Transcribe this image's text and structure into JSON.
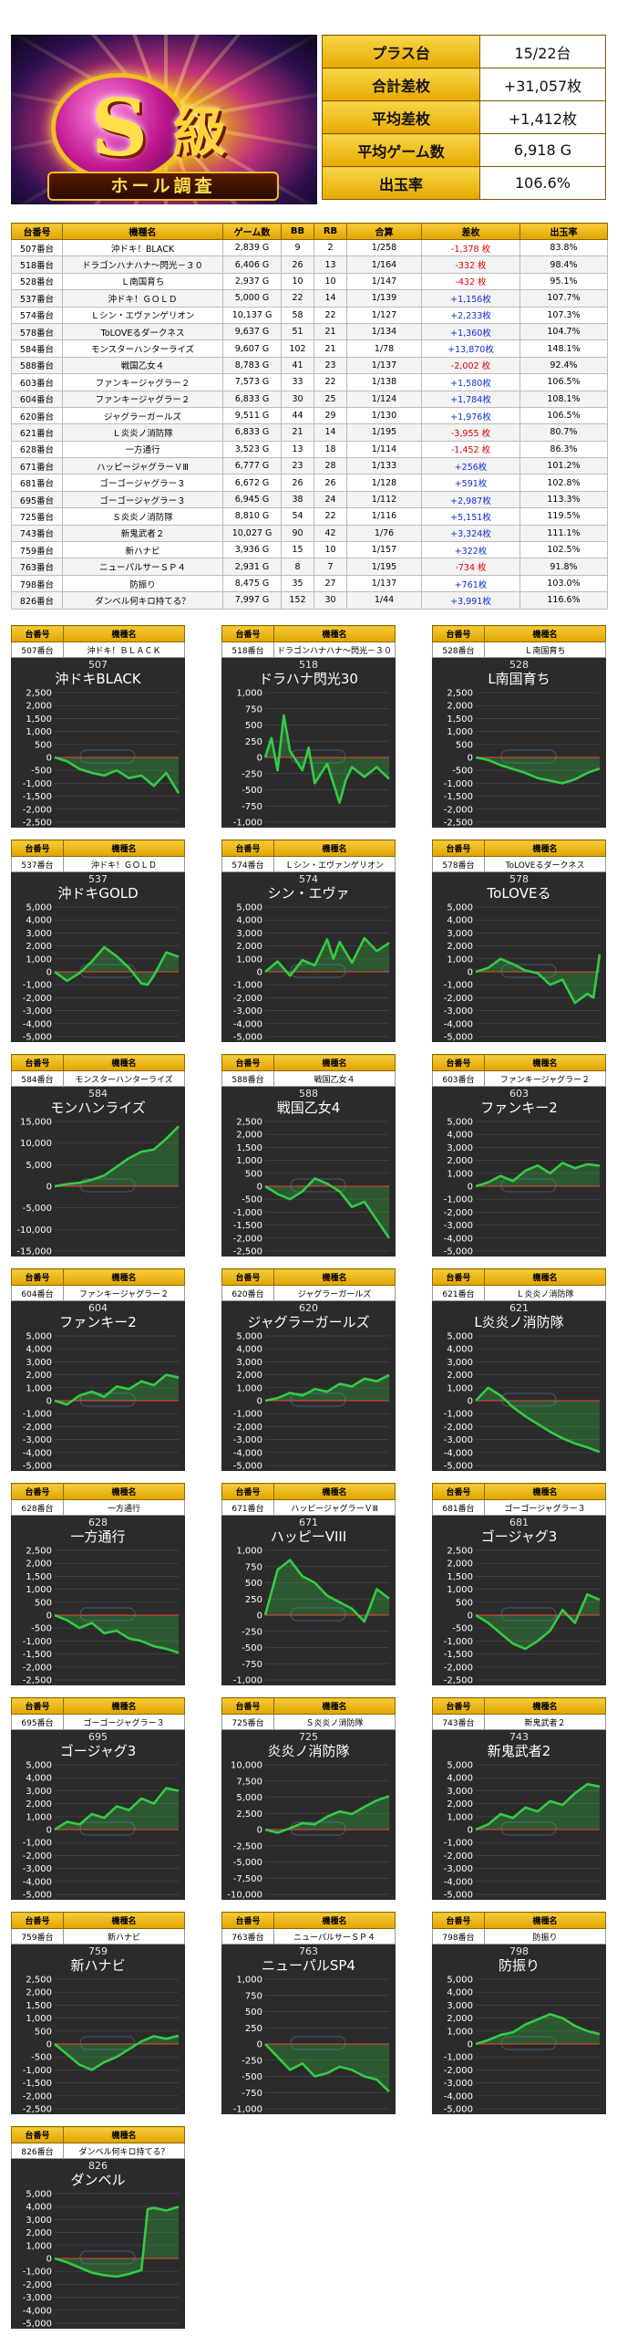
{
  "banner": {
    "s": "S",
    "kyu": "級",
    "subtitle": "ホール調査"
  },
  "summary": [
    {
      "label": "プラス台",
      "value": "15/22台"
    },
    {
      "label": "合計差枚",
      "value": "+31,057枚"
    },
    {
      "label": "平均差枚",
      "value": "+1,412枚"
    },
    {
      "label": "平均ゲーム数",
      "value": "6,918 G"
    },
    {
      "label": "出玉率",
      "value": "106.6%"
    }
  ],
  "table": {
    "headers": [
      "台番号",
      "機種名",
      "ゲーム数",
      "BB",
      "RB",
      "合算",
      "差枚",
      "出玉率"
    ],
    "rows": [
      [
        "507番台",
        "沖ドキ！BLACK",
        "2,839 G",
        "9",
        "2",
        "1/258",
        "-1,378 枚",
        "83.8%"
      ],
      [
        "518番台",
        "ドラゴンハナハナ～閃光－３０",
        "6,406 G",
        "26",
        "13",
        "1/164",
        "-332 枚",
        "98.4%"
      ],
      [
        "528番台",
        "Ｌ南国育ち",
        "2,937 G",
        "10",
        "10",
        "1/147",
        "-432 枚",
        "95.1%"
      ],
      [
        "537番台",
        "沖ドキ！ＧＯＬＤ",
        "5,000 G",
        "22",
        "14",
        "1/139",
        "+1,156枚",
        "107.7%"
      ],
      [
        "574番台",
        "Ｌシン・エヴァンゲリオン",
        "10,137 G",
        "58",
        "22",
        "1/127",
        "+2,233枚",
        "107.3%"
      ],
      [
        "578番台",
        "ToLOVEるダークネス",
        "9,637 G",
        "51",
        "21",
        "1/134",
        "+1,360枚",
        "104.7%"
      ],
      [
        "584番台",
        "モンスターハンターライズ",
        "9,607 G",
        "102",
        "21",
        "1/78",
        "+13,870枚",
        "148.1%"
      ],
      [
        "588番台",
        "戦国乙女４",
        "8,783 G",
        "41",
        "23",
        "1/137",
        "-2,002 枚",
        "92.4%"
      ],
      [
        "603番台",
        "ファンキージャグラー２",
        "7,573 G",
        "33",
        "22",
        "1/138",
        "+1,580枚",
        "106.5%"
      ],
      [
        "604番台",
        "ファンキージャグラー２",
        "6,833 G",
        "30",
        "25",
        "1/124",
        "+1,784枚",
        "108.1%"
      ],
      [
        "620番台",
        "ジャグラーガールズ",
        "9,511 G",
        "44",
        "29",
        "1/130",
        "+1,976枚",
        "106.5%"
      ],
      [
        "621番台",
        "Ｌ炎炎ノ消防隊",
        "6,833 G",
        "21",
        "14",
        "1/195",
        "-3,955 枚",
        "80.7%"
      ],
      [
        "628番台",
        "一方通行",
        "3,523 G",
        "13",
        "18",
        "1/114",
        "-1,452 枚",
        "86.3%"
      ],
      [
        "671番台",
        "ハッピージャグラーＶⅢ",
        "6,777 G",
        "23",
        "28",
        "1/133",
        "+256枚",
        "101.2%"
      ],
      [
        "681番台",
        "ゴーゴージャグラー３",
        "6,672 G",
        "26",
        "26",
        "1/128",
        "+591枚",
        "102.8%"
      ],
      [
        "695番台",
        "ゴーゴージャグラー３",
        "6,945 G",
        "38",
        "24",
        "1/112",
        "+2,987枚",
        "113.3%"
      ],
      [
        "725番台",
        "Ｓ炎炎ノ消防隊",
        "8,810 G",
        "54",
        "22",
        "1/116",
        "+5,151枚",
        "119.5%"
      ],
      [
        "743番台",
        "新鬼武者２",
        "10,027 G",
        "90",
        "42",
        "1/76",
        "+3,324枚",
        "111.1%"
      ],
      [
        "759番台",
        "新ハナビ",
        "3,936 G",
        "15",
        "10",
        "1/157",
        "+322枚",
        "102.5%"
      ],
      [
        "763番台",
        "ニューパルサーＳＰ４",
        "2,931 G",
        "8",
        "7",
        "1/195",
        "-734 枚",
        "91.8%"
      ],
      [
        "798番台",
        "防振り",
        "8,475 G",
        "35",
        "27",
        "1/137",
        "+761枚",
        "103.0%"
      ],
      [
        "826番台",
        "ダンベル何キロ持てる？",
        "7,997 G",
        "152",
        "30",
        "1/44",
        "+3,991枚",
        "116.6%"
      ]
    ]
  },
  "panel_headers": [
    "台番号",
    "機種名"
  ],
  "chart_data": [
    {
      "type": "line",
      "unit": "507",
      "title": "沖ドキBLACK",
      "machine": "沖ドキ！ＢＬＡＣＫ",
      "ylim": [
        -2500,
        2500
      ],
      "yticks": [
        2500,
        2000,
        1500,
        1000,
        500,
        0,
        -500,
        -1000,
        -1500,
        -2000,
        -2500
      ],
      "x": [
        0,
        0.1,
        0.2,
        0.3,
        0.4,
        0.5,
        0.6,
        0.7,
        0.8,
        0.9,
        1.0
      ],
      "values": [
        0,
        -150,
        -450,
        -600,
        -700,
        -500,
        -800,
        -700,
        -1100,
        -600,
        -1378
      ],
      "color": "#33cc44"
    },
    {
      "type": "line",
      "unit": "518",
      "title": "ドラハナ閃光30",
      "machine": "ドラゴンハナハナ～閃光－３０",
      "ylim": [
        -1000,
        1000
      ],
      "yticks": [
        1000,
        750,
        500,
        250,
        0,
        -250,
        -500,
        -750,
        -1000
      ],
      "x": [
        0,
        0.05,
        0.1,
        0.15,
        0.2,
        0.3,
        0.35,
        0.4,
        0.5,
        0.6,
        0.65,
        0.7,
        0.8,
        0.9,
        1.0
      ],
      "values": [
        0,
        300,
        -200,
        650,
        100,
        -200,
        150,
        -400,
        -100,
        -700,
        -350,
        -150,
        -300,
        -150,
        -332
      ],
      "color": "#33cc44"
    },
    {
      "type": "line",
      "unit": "528",
      "title": "L南国育ち",
      "machine": "Ｌ南国育ち",
      "ylim": [
        -2500,
        2500
      ],
      "yticks": [
        2500,
        2000,
        1500,
        1000,
        500,
        0,
        -500,
        -1000,
        -1500,
        -2000,
        -2500
      ],
      "x": [
        0,
        0.1,
        0.2,
        0.3,
        0.4,
        0.5,
        0.6,
        0.7,
        0.8,
        0.9,
        1.0
      ],
      "values": [
        0,
        -100,
        -300,
        -450,
        -600,
        -800,
        -900,
        -1000,
        -850,
        -600,
        -432
      ],
      "color": "#33cc44"
    },
    {
      "type": "line",
      "unit": "537",
      "title": "沖ドキGOLD",
      "machine": "沖ドキ！ＧＯＬＤ",
      "ylim": [
        -5000,
        5000
      ],
      "yticks": [
        5000,
        4000,
        3000,
        2000,
        1000,
        0,
        -1000,
        -2000,
        -3000,
        -4000,
        -5000
      ],
      "x": [
        0,
        0.1,
        0.2,
        0.3,
        0.4,
        0.5,
        0.6,
        0.7,
        0.75,
        0.8,
        0.9,
        1.0
      ],
      "values": [
        0,
        -700,
        -100,
        800,
        1900,
        1200,
        300,
        -900,
        -1000,
        -300,
        1500,
        1156
      ],
      "color": "#33cc44"
    },
    {
      "type": "line",
      "unit": "574",
      "title": "シン・エヴァ",
      "machine": "Ｌシン・エヴァンゲリオン",
      "ylim": [
        -5000,
        5000
      ],
      "yticks": [
        5000,
        4000,
        3000,
        2000,
        1000,
        0,
        -1000,
        -2000,
        -3000,
        -4000,
        -5000
      ],
      "x": [
        0,
        0.1,
        0.2,
        0.3,
        0.4,
        0.5,
        0.55,
        0.6,
        0.7,
        0.8,
        0.9,
        1.0
      ],
      "values": [
        0,
        800,
        -300,
        900,
        500,
        2500,
        1000,
        2300,
        700,
        2600,
        1600,
        2233
      ],
      "color": "#33cc44"
    },
    {
      "type": "line",
      "unit": "578",
      "title": "ToLOVEる",
      "machine": "ToLOVEるダークネス",
      "ylim": [
        -5000,
        5000
      ],
      "yticks": [
        5000,
        4000,
        3000,
        2000,
        1000,
        0,
        -1000,
        -2000,
        -3000,
        -4000,
        -5000
      ],
      "x": [
        0,
        0.1,
        0.2,
        0.3,
        0.4,
        0.5,
        0.6,
        0.7,
        0.8,
        0.9,
        0.95,
        1.0
      ],
      "values": [
        0,
        300,
        1000,
        600,
        100,
        -100,
        -1000,
        -600,
        -2400,
        -1700,
        -2000,
        1360
      ],
      "color": "#33cc44"
    },
    {
      "type": "line",
      "unit": "584",
      "title": "モンハンライズ",
      "machine": "モンスターハンターライズ",
      "ylim": [
        -15000,
        15000
      ],
      "yticks": [
        15000,
        10000,
        5000,
        0,
        -5000,
        -10000,
        -15000
      ],
      "x": [
        0,
        0.1,
        0.2,
        0.3,
        0.4,
        0.5,
        0.6,
        0.7,
        0.8,
        0.9,
        1.0
      ],
      "values": [
        0,
        500,
        800,
        1500,
        2500,
        4500,
        6500,
        8000,
        8500,
        11000,
        13870
      ],
      "color": "#33cc44"
    },
    {
      "type": "line",
      "unit": "588",
      "title": "戦国乙女4",
      "machine": "戦国乙女４",
      "ylim": [
        -2500,
        2500
      ],
      "yticks": [
        2500,
        2000,
        1500,
        1000,
        500,
        0,
        -500,
        -1000,
        -1500,
        -2000,
        -2500
      ],
      "x": [
        0,
        0.1,
        0.2,
        0.3,
        0.4,
        0.5,
        0.6,
        0.7,
        0.8,
        0.9,
        1.0
      ],
      "values": [
        0,
        -300,
        -500,
        -200,
        300,
        100,
        -200,
        -800,
        -600,
        -1300,
        -2002
      ],
      "color": "#33cc44"
    },
    {
      "type": "line",
      "unit": "603",
      "title": "ファンキー2",
      "machine": "ファンキージャグラー２",
      "ylim": [
        -5000,
        5000
      ],
      "yticks": [
        5000,
        4000,
        3000,
        2000,
        1000,
        0,
        -1000,
        -2000,
        -3000,
        -4000,
        -5000
      ],
      "x": [
        0,
        0.1,
        0.2,
        0.3,
        0.4,
        0.5,
        0.6,
        0.7,
        0.8,
        0.9,
        1.0
      ],
      "values": [
        0,
        300,
        800,
        400,
        1200,
        1600,
        1000,
        1800,
        1400,
        1700,
        1580
      ],
      "color": "#33cc44"
    },
    {
      "type": "line",
      "unit": "604",
      "title": "ファンキー2",
      "machine": "ファンキージャグラー２",
      "ylim": [
        -5000,
        5000
      ],
      "yticks": [
        5000,
        4000,
        3000,
        2000,
        1000,
        0,
        -1000,
        -2000,
        -3000,
        -4000,
        -5000
      ],
      "x": [
        0,
        0.1,
        0.2,
        0.3,
        0.4,
        0.5,
        0.6,
        0.7,
        0.8,
        0.9,
        1.0
      ],
      "values": [
        0,
        -300,
        400,
        700,
        300,
        1100,
        900,
        1500,
        1200,
        2000,
        1784
      ],
      "color": "#33cc44"
    },
    {
      "type": "line",
      "unit": "620",
      "title": "ジャグラーガールズ",
      "machine": "ジャグラーガールズ",
      "ylim": [
        -5000,
        5000
      ],
      "yticks": [
        5000,
        4000,
        3000,
        2000,
        1000,
        0,
        -1000,
        -2000,
        -3000,
        -4000,
        -5000
      ],
      "x": [
        0,
        0.1,
        0.2,
        0.3,
        0.4,
        0.5,
        0.6,
        0.7,
        0.8,
        0.9,
        1.0
      ],
      "values": [
        0,
        200,
        600,
        400,
        900,
        700,
        1300,
        1100,
        1700,
        1500,
        1976
      ],
      "color": "#33cc44"
    },
    {
      "type": "line",
      "unit": "621",
      "title": "L炎炎ノ消防隊",
      "machine": "Ｌ炎炎ノ消防隊",
      "ylim": [
        -5000,
        5000
      ],
      "yticks": [
        5000,
        4000,
        3000,
        2000,
        1000,
        0,
        -1000,
        -2000,
        -3000,
        -4000,
        -5000
      ],
      "x": [
        0,
        0.1,
        0.2,
        0.3,
        0.4,
        0.5,
        0.6,
        0.7,
        0.8,
        0.9,
        1.0
      ],
      "values": [
        0,
        1000,
        400,
        -500,
        -1200,
        -1800,
        -2400,
        -2900,
        -3300,
        -3600,
        -3955
      ],
      "color": "#33cc44"
    },
    {
      "type": "line",
      "unit": "628",
      "title": "一方通行",
      "machine": "一方通行",
      "ylim": [
        -2500,
        2500
      ],
      "yticks": [
        2500,
        2000,
        1500,
        1000,
        500,
        0,
        -500,
        -1000,
        -1500,
        -2000,
        -2500
      ],
      "x": [
        0,
        0.1,
        0.2,
        0.3,
        0.4,
        0.5,
        0.6,
        0.7,
        0.8,
        0.9,
        1.0
      ],
      "values": [
        0,
        -200,
        -500,
        -300,
        -700,
        -600,
        -900,
        -1000,
        -1200,
        -1300,
        -1452
      ],
      "color": "#33cc44"
    },
    {
      "type": "line",
      "unit": "671",
      "title": "ハッピーVIII",
      "machine": "ハッピージャグラーＶⅢ",
      "ylim": [
        -1000,
        1000
      ],
      "yticks": [
        1000,
        750,
        500,
        250,
        0,
        -250,
        -500,
        -750,
        -1000
      ],
      "x": [
        0,
        0.1,
        0.2,
        0.3,
        0.4,
        0.5,
        0.6,
        0.7,
        0.8,
        0.9,
        1.0
      ],
      "values": [
        0,
        700,
        850,
        600,
        500,
        300,
        200,
        100,
        -100,
        400,
        256
      ],
      "color": "#33cc44"
    },
    {
      "type": "line",
      "unit": "681",
      "title": "ゴージャグ3",
      "machine": "ゴーゴージャグラー３",
      "ylim": [
        -2500,
        2500
      ],
      "yticks": [
        2500,
        2000,
        1500,
        1000,
        500,
        0,
        -500,
        -1000,
        -1500,
        -2000,
        -2500
      ],
      "x": [
        0,
        0.1,
        0.2,
        0.3,
        0.4,
        0.5,
        0.6,
        0.7,
        0.8,
        0.9,
        1.0
      ],
      "values": [
        0,
        -300,
        -700,
        -1100,
        -1300,
        -1000,
        -600,
        200,
        -300,
        800,
        591
      ],
      "color": "#33cc44"
    },
    {
      "type": "line",
      "unit": "695",
      "title": "ゴージャグ3",
      "machine": "ゴーゴージャグラー３",
      "ylim": [
        -5000,
        5000
      ],
      "yticks": [
        5000,
        4000,
        3000,
        2000,
        1000,
        0,
        -1000,
        -2000,
        -3000,
        -4000,
        -5000
      ],
      "x": [
        0,
        0.1,
        0.2,
        0.3,
        0.4,
        0.5,
        0.6,
        0.7,
        0.8,
        0.9,
        1.0
      ],
      "values": [
        0,
        600,
        400,
        1200,
        900,
        1800,
        1500,
        2400,
        2000,
        3200,
        2987
      ],
      "color": "#33cc44"
    },
    {
      "type": "line",
      "unit": "725",
      "title": "炎炎ノ消防隊",
      "machine": "Ｓ炎炎ノ消防隊",
      "ylim": [
        -10000,
        10000
      ],
      "yticks": [
        10000,
        7500,
        5000,
        2500,
        0,
        -2500,
        -5000,
        -7500,
        -10000
      ],
      "x": [
        0,
        0.1,
        0.2,
        0.3,
        0.4,
        0.5,
        0.6,
        0.7,
        0.8,
        0.9,
        1.0
      ],
      "values": [
        0,
        -500,
        200,
        1000,
        800,
        2000,
        2800,
        2400,
        3500,
        4500,
        5151
      ],
      "color": "#33cc44"
    },
    {
      "type": "line",
      "unit": "743",
      "title": "新鬼武者2",
      "machine": "新鬼武者２",
      "ylim": [
        -5000,
        5000
      ],
      "yticks": [
        5000,
        4000,
        3000,
        2000,
        1000,
        0,
        -1000,
        -2000,
        -3000,
        -4000,
        -5000
      ],
      "x": [
        0,
        0.1,
        0.2,
        0.3,
        0.4,
        0.5,
        0.6,
        0.7,
        0.8,
        0.9,
        1.0
      ],
      "values": [
        0,
        400,
        1200,
        900,
        1700,
        1400,
        2200,
        1900,
        2800,
        3500,
        3324
      ],
      "color": "#33cc44"
    },
    {
      "type": "line",
      "unit": "759",
      "title": "新ハナビ",
      "machine": "新ハナビ",
      "ylim": [
        -2500,
        2500
      ],
      "yticks": [
        2500,
        2000,
        1500,
        1000,
        500,
        0,
        -500,
        -1000,
        -1500,
        -2000,
        -2500
      ],
      "x": [
        0,
        0.1,
        0.2,
        0.3,
        0.4,
        0.5,
        0.6,
        0.7,
        0.8,
        0.9,
        1.0
      ],
      "values": [
        0,
        -400,
        -800,
        -1000,
        -700,
        -500,
        -200,
        100,
        300,
        200,
        322
      ],
      "color": "#33cc44"
    },
    {
      "type": "line",
      "unit": "763",
      "title": "ニューパルSP4",
      "machine": "ニューパルサーＳＰ４",
      "ylim": [
        -1000,
        1000
      ],
      "yticks": [
        1000,
        750,
        500,
        250,
        0,
        -250,
        -500,
        -750,
        -1000
      ],
      "x": [
        0,
        0.1,
        0.2,
        0.3,
        0.4,
        0.5,
        0.6,
        0.7,
        0.8,
        0.9,
        1.0
      ],
      "values": [
        0,
        -200,
        -400,
        -300,
        -500,
        -450,
        -350,
        -400,
        -500,
        -550,
        -734
      ],
      "color": "#33cc44"
    },
    {
      "type": "line",
      "unit": "798",
      "title": "防振り",
      "machine": "防振り",
      "ylim": [
        -5000,
        5000
      ],
      "yticks": [
        5000,
        4000,
        3000,
        2000,
        1000,
        0,
        -1000,
        -2000,
        -3000,
        -4000,
        -5000
      ],
      "x": [
        0,
        0.1,
        0.2,
        0.3,
        0.4,
        0.5,
        0.6,
        0.7,
        0.8,
        0.9,
        1.0
      ],
      "values": [
        0,
        300,
        700,
        900,
        1500,
        1900,
        2300,
        2000,
        1400,
        1000,
        761
      ],
      "color": "#33cc44"
    },
    {
      "type": "line",
      "unit": "826",
      "title": "ダンベル",
      "machine": "ダンベル何キロ持てる？",
      "ylim": [
        -5000,
        5000
      ],
      "yticks": [
        5000,
        4000,
        3000,
        2000,
        1000,
        0,
        -1000,
        -2000,
        -3000,
        -4000,
        -5000
      ],
      "x": [
        0,
        0.1,
        0.2,
        0.3,
        0.4,
        0.5,
        0.6,
        0.7,
        0.75,
        0.8,
        0.9,
        1.0
      ],
      "values": [
        0,
        -300,
        -700,
        -1100,
        -1300,
        -1400,
        -1200,
        -900,
        3800,
        3900,
        3700,
        3991
      ],
      "color": "#33cc44"
    }
  ]
}
